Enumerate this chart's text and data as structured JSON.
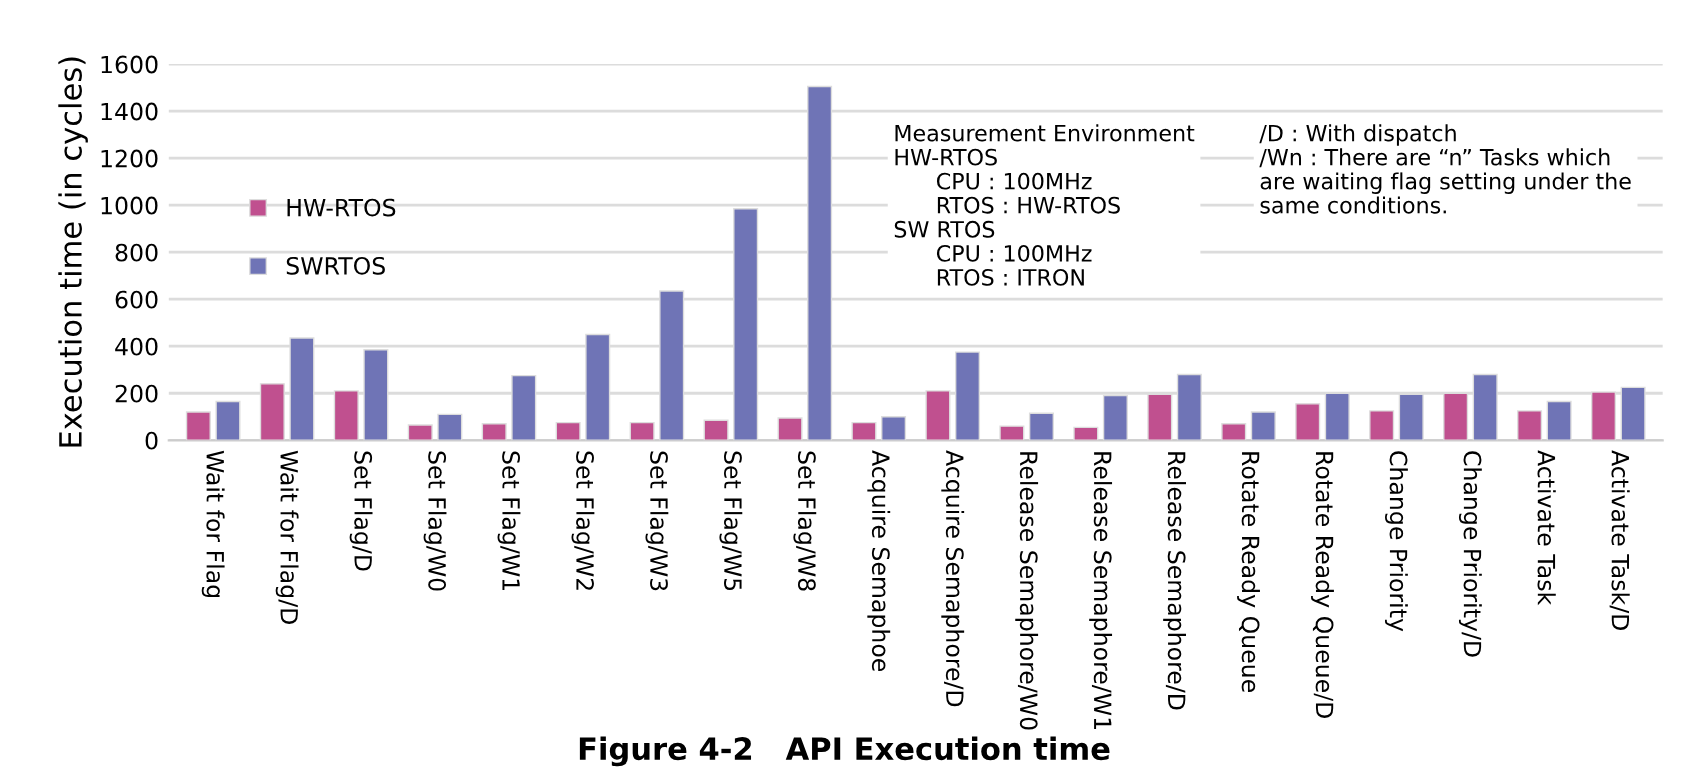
{
  "chart_data": {
    "type": "bar",
    "title": "Figure 4-2   API Execution time",
    "ylabel": "Execution time (in cycles)",
    "categories": [
      "Wait for Flag",
      "Wait for Flag/D",
      "Set Flag/D",
      "Set Flag/W0",
      "Set Flag/W1",
      "Set Flag/W2",
      "Set Flag/W3",
      "Set Flag/W5",
      "Set Flag/W8",
      "Acquire Semaphoe",
      "Acquire Semaphore/D",
      "Release Semaphore/W0",
      "Release Semaphore/W1",
      "Release Semaphore/D",
      "Rotate Ready Queue",
      "Rotate Ready Queue/D",
      "Change Priority",
      "Change Priority/D",
      "Activate Task",
      "Activate Task/D"
    ],
    "series": [
      {
        "name": "HW-RTOS",
        "color": "#c0508f",
        "values": [
          120,
          240,
          210,
          65,
          70,
          75,
          75,
          85,
          95,
          75,
          210,
          60,
          55,
          195,
          70,
          155,
          125,
          200,
          125,
          205
        ]
      },
      {
        "name": "SWRTOS",
        "color": "#6f74b6",
        "values": [
          165,
          435,
          385,
          110,
          275,
          450,
          635,
          985,
          1505,
          100,
          375,
          115,
          190,
          280,
          120,
          200,
          195,
          280,
          165,
          225
        ]
      }
    ],
    "ylim": [
      0,
      1600
    ],
    "yticks": [
      0,
      200,
      400,
      600,
      800,
      1000,
      1200,
      1400,
      1600
    ],
    "grid": "y",
    "legend": "top left",
    "annotations": [
      "Measurement Environment\nHW-RTOS\n      CPU : 100MHz\n      RTOS : HW-RTOS\nSW RTOS\n      CPU : 100MHz\n      RTOS : ITRON",
      "/D : With dispatch\n/Wn : There are “n” Tasks which\nare waiting flag setting under the\nsame conditions."
    ]
  }
}
